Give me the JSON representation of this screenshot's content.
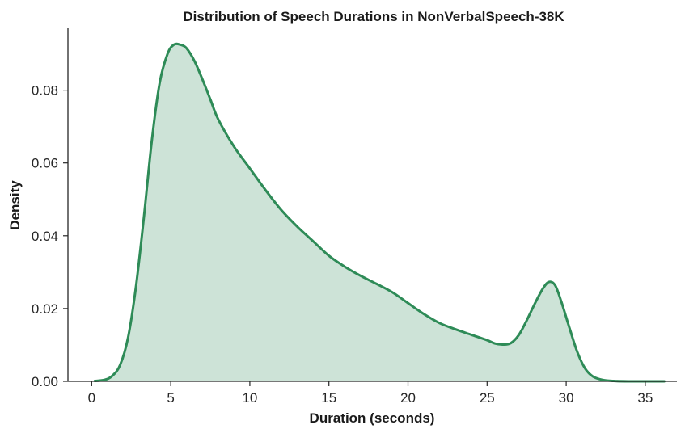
{
  "chart_data": {
    "type": "area",
    "title": "Distribution of Speech Durations in NonVerbalSpeech-38K",
    "xlabel": "Duration (seconds)",
    "ylabel": "Density",
    "xlim": [
      -1.5,
      37
    ],
    "ylim": [
      0,
      0.097
    ],
    "xticks": [
      0,
      5,
      10,
      15,
      20,
      25,
      30,
      35
    ],
    "xtick_labels": [
      "0",
      "5",
      "10",
      "15",
      "20",
      "25",
      "30",
      "35"
    ],
    "yticks": [
      0,
      0.02,
      0.04,
      0.06,
      0.08
    ],
    "ytick_labels": [
      "0.00",
      "0.02",
      "0.04",
      "0.06",
      "0.08"
    ],
    "grid": false,
    "series": [
      {
        "color": "#2e8b57",
        "fill_color": "#2e8b57",
        "fill_opacity": 0.24,
        "x": [
          0.2,
          0.8,
          1.3,
          1.8,
          2.3,
          2.8,
          3.3,
          3.8,
          4.3,
          4.8,
          5.2,
          5.6,
          6.0,
          6.5,
          7.0,
          7.5,
          8.0,
          9.0,
          10.0,
          11.0,
          12.0,
          13.0,
          14.0,
          15.0,
          16.0,
          17.0,
          18.0,
          19.0,
          20.0,
          21.0,
          22.0,
          23.0,
          24.0,
          25.0,
          25.5,
          26.0,
          26.5,
          27.0,
          27.5,
          28.0,
          28.5,
          28.9,
          29.3,
          29.7,
          30.2,
          30.7,
          31.2,
          31.7,
          32.3,
          33.0,
          34.0,
          35.0,
          36.2
        ],
        "y": [
          0.0001,
          0.0004,
          0.0015,
          0.0045,
          0.012,
          0.026,
          0.045,
          0.066,
          0.082,
          0.09,
          0.0925,
          0.0925,
          0.0915,
          0.088,
          0.083,
          0.0775,
          0.072,
          0.0645,
          0.0585,
          0.0525,
          0.047,
          0.0425,
          0.0385,
          0.0345,
          0.0315,
          0.029,
          0.0268,
          0.0245,
          0.0215,
          0.0185,
          0.016,
          0.0143,
          0.0128,
          0.0113,
          0.0104,
          0.0101,
          0.0105,
          0.0127,
          0.0167,
          0.0212,
          0.0253,
          0.0273,
          0.0264,
          0.0218,
          0.0148,
          0.0081,
          0.0035,
          0.0013,
          0.0004,
          0.0001,
          0.0,
          0.0,
          0.0
        ]
      }
    ]
  }
}
